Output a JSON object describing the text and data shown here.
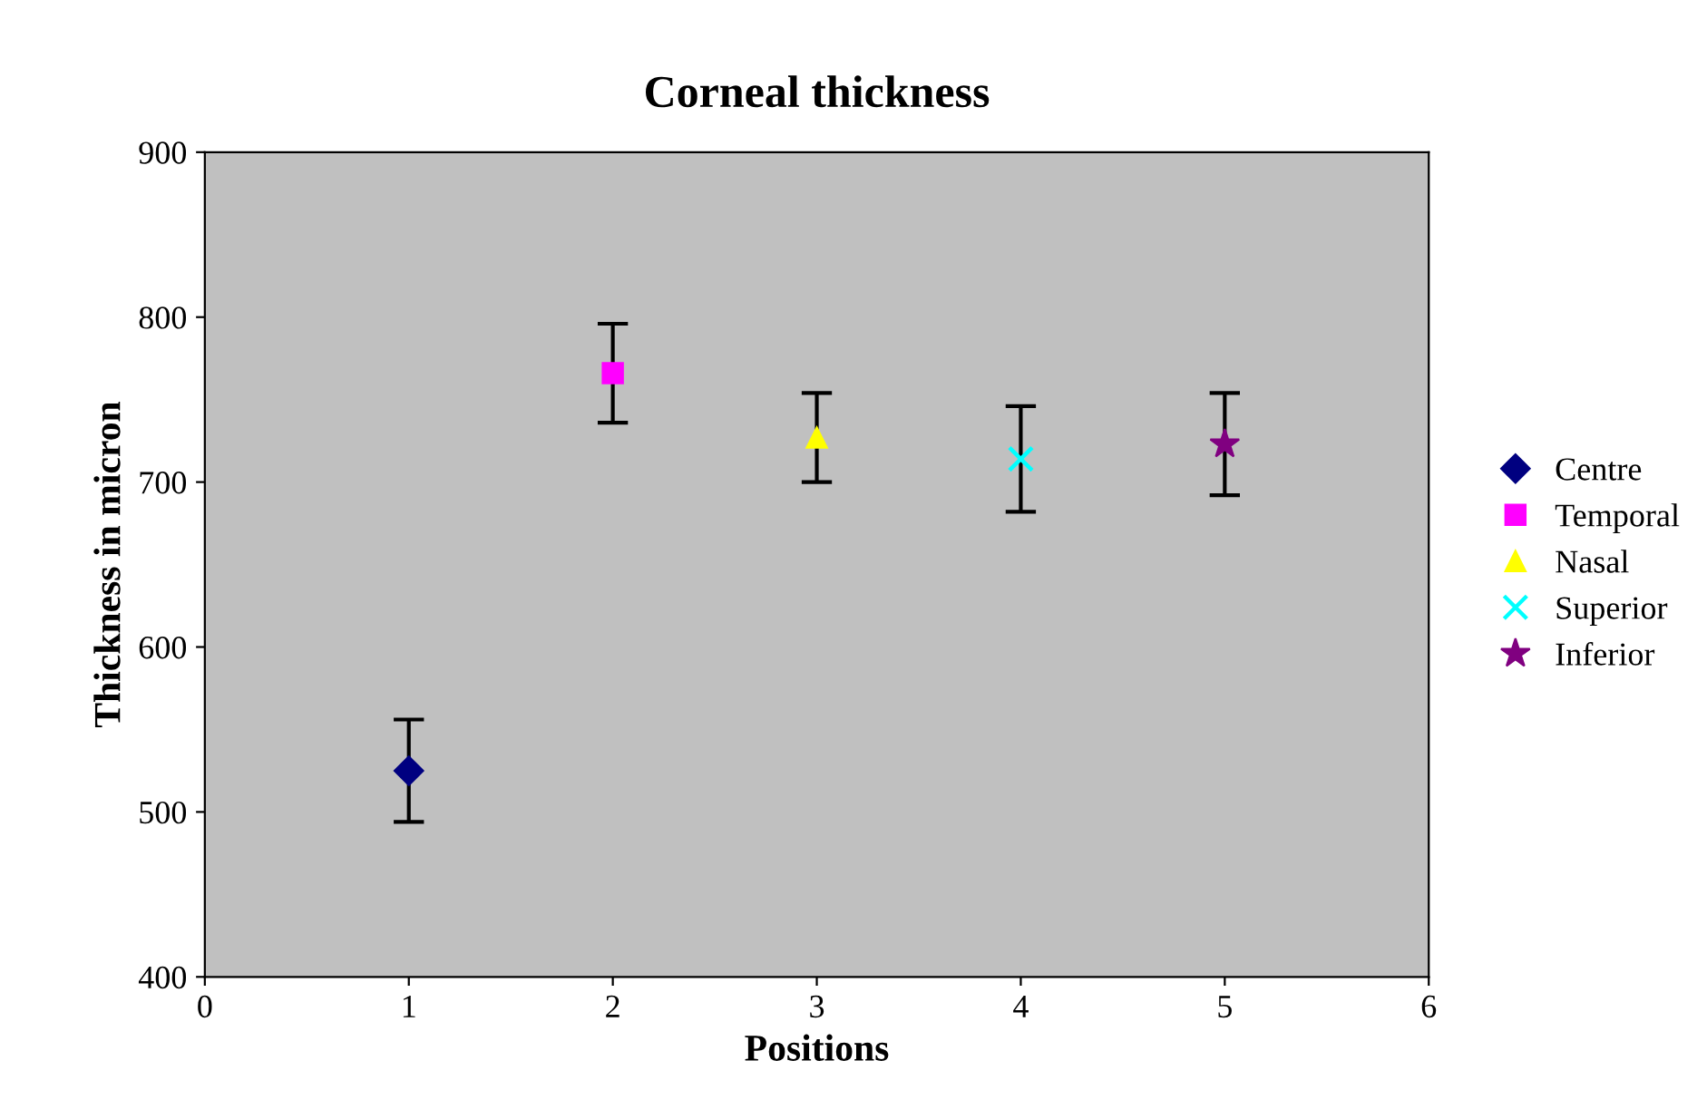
{
  "chart_data": {
    "type": "scatter",
    "title": "Corneal thickness",
    "xlabel": "Positions",
    "ylabel": "Thickness in micron",
    "series": [
      {
        "name": "Centre",
        "color": "#000080",
        "marker": "diamond",
        "x": [
          1
        ],
        "values": [
          525
        ],
        "errors": [
          31
        ]
      },
      {
        "name": "Temporal",
        "color": "#ff00ff",
        "marker": "square",
        "x": [
          2
        ],
        "values": [
          766
        ],
        "errors": [
          30
        ]
      },
      {
        "name": "Nasal",
        "color": "#ffff00",
        "marker": "triangle",
        "x": [
          3
        ],
        "values": [
          727
        ],
        "errors": [
          27
        ]
      },
      {
        "name": "Superior",
        "color": "#00ffff",
        "marker": "cross",
        "x": [
          4
        ],
        "values": [
          714
        ],
        "errors": [
          32
        ]
      },
      {
        "name": "Inferior",
        "color": "#800080",
        "marker": "star",
        "x": [
          5
        ],
        "values": [
          723
        ],
        "errors": [
          31
        ]
      }
    ],
    "xlim": [
      0,
      6
    ],
    "xticks": [
      0,
      1,
      2,
      3,
      4,
      5,
      6
    ],
    "ylim": [
      400,
      900
    ],
    "yticks": [
      400,
      500,
      600,
      700,
      800,
      900
    ],
    "grid": false,
    "legend": "right"
  }
}
